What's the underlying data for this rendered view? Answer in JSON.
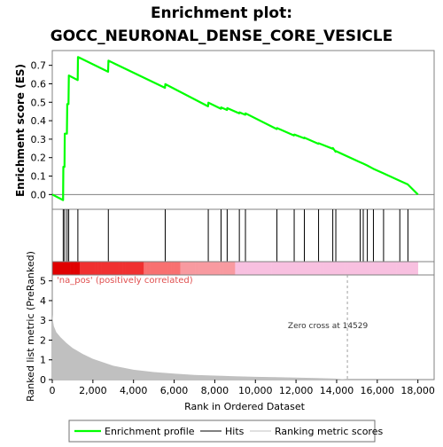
{
  "title_line1": "Enrichment plot:",
  "title_line2": "GOCC_NEURONAL_DENSE_CORE_VESICLE",
  "colors": {
    "profile": "#00ff00",
    "hits": "#000000",
    "metric_fill": "#c0c0c0",
    "pos_label": "#e05050",
    "heat_red": "#ee0000",
    "heat_pink": "#f7b8d8",
    "zero_line": "#a0a0a0"
  },
  "legend": {
    "profile": "Enrichment profile",
    "hits": "Hits",
    "metric": "Ranking metric scores"
  },
  "chart_data": [
    {
      "type": "line",
      "name": "enrichment-profile",
      "ylabel": "Enrichment score (ES)",
      "xlim": [
        0,
        18800
      ],
      "ylim": [
        -0.08,
        0.78
      ],
      "yticks": [
        0.0,
        0.1,
        0.2,
        0.3,
        0.4,
        0.5,
        0.6,
        0.7
      ],
      "ytick_labels": [
        "0.0",
        "0.1",
        "0.2",
        "0.3",
        "0.4",
        "0.5",
        "0.6",
        "0.7"
      ],
      "grid": false,
      "points": [
        [
          0,
          0.0
        ],
        [
          530,
          -0.03
        ],
        [
          545,
          0.15
        ],
        [
          600,
          0.15
        ],
        [
          615,
          0.33
        ],
        [
          720,
          0.33
        ],
        [
          735,
          0.49
        ],
        [
          800,
          0.49
        ],
        [
          815,
          0.645
        ],
        [
          1250,
          0.62
        ],
        [
          1265,
          0.745
        ],
        [
          2750,
          0.665
        ],
        [
          2765,
          0.725
        ],
        [
          5550,
          0.578
        ],
        [
          5565,
          0.598
        ],
        [
          7670,
          0.478
        ],
        [
          7685,
          0.498
        ],
        [
          8300,
          0.465
        ],
        [
          8315,
          0.472
        ],
        [
          8600,
          0.458
        ],
        [
          8615,
          0.468
        ],
        [
          9200,
          0.44
        ],
        [
          9215,
          0.445
        ],
        [
          9500,
          0.432
        ],
        [
          9515,
          0.44
        ],
        [
          11050,
          0.355
        ],
        [
          11065,
          0.36
        ],
        [
          11900,
          0.32
        ],
        [
          11915,
          0.325
        ],
        [
          12400,
          0.305
        ],
        [
          12415,
          0.308
        ],
        [
          13100,
          0.275
        ],
        [
          13115,
          0.278
        ],
        [
          13800,
          0.248
        ],
        [
          13815,
          0.252
        ],
        [
          13950,
          0.232
        ],
        [
          13965,
          0.235
        ],
        [
          15150,
          0.175
        ],
        [
          15300,
          0.168
        ],
        [
          15500,
          0.158
        ],
        [
          15800,
          0.14
        ],
        [
          16300,
          0.115
        ],
        [
          17100,
          0.075
        ],
        [
          17500,
          0.055
        ],
        [
          18000,
          0.0
        ]
      ],
      "hits": [
        540,
        610,
        730,
        810,
        1260,
        2760,
        5560,
        7680,
        8310,
        8610,
        9210,
        9510,
        11060,
        11910,
        12410,
        13110,
        13810,
        13960,
        15160,
        15310,
        15510,
        15810,
        16310,
        17110,
        17510
      ]
    },
    {
      "type": "area",
      "name": "ranked-list-metric",
      "xlabel": "Rank in Ordered Dataset",
      "ylabel": "Ranked list metric (PreRanked)",
      "xlim": [
        0,
        18800
      ],
      "ylim": [
        0,
        5.3
      ],
      "xticks": [
        0,
        2000,
        4000,
        6000,
        8000,
        10000,
        12000,
        14000,
        16000,
        18000
      ],
      "xtick_labels": [
        "0",
        "2,000",
        "4,000",
        "6,000",
        "8,000",
        "10,000",
        "12,000",
        "14,000",
        "16,000",
        "18,000"
      ],
      "yticks": [
        0,
        1,
        2,
        3,
        4,
        5
      ],
      "ytick_labels": [
        "0",
        "1",
        "2",
        "3",
        "4",
        "5"
      ],
      "points": [
        [
          0,
          3.3
        ],
        [
          30,
          3.0
        ],
        [
          80,
          2.7
        ],
        [
          200,
          2.4
        ],
        [
          400,
          2.15
        ],
        [
          700,
          1.85
        ],
        [
          1000,
          1.6
        ],
        [
          1500,
          1.3
        ],
        [
          2000,
          1.05
        ],
        [
          3000,
          0.7
        ],
        [
          4000,
          0.5
        ],
        [
          5000,
          0.38
        ],
        [
          6000,
          0.3
        ],
        [
          7000,
          0.24
        ],
        [
          8000,
          0.2
        ],
        [
          9000,
          0.17
        ],
        [
          10000,
          0.14
        ],
        [
          11000,
          0.12
        ],
        [
          12000,
          0.1
        ],
        [
          13000,
          0.08
        ],
        [
          14000,
          0.05
        ],
        [
          14529,
          0.0
        ],
        [
          18000,
          0.0
        ]
      ],
      "zero_cross": 14529,
      "zero_cross_label": "Zero cross at 14529",
      "pos_label": "'na_pos' (positively correlated)"
    }
  ]
}
